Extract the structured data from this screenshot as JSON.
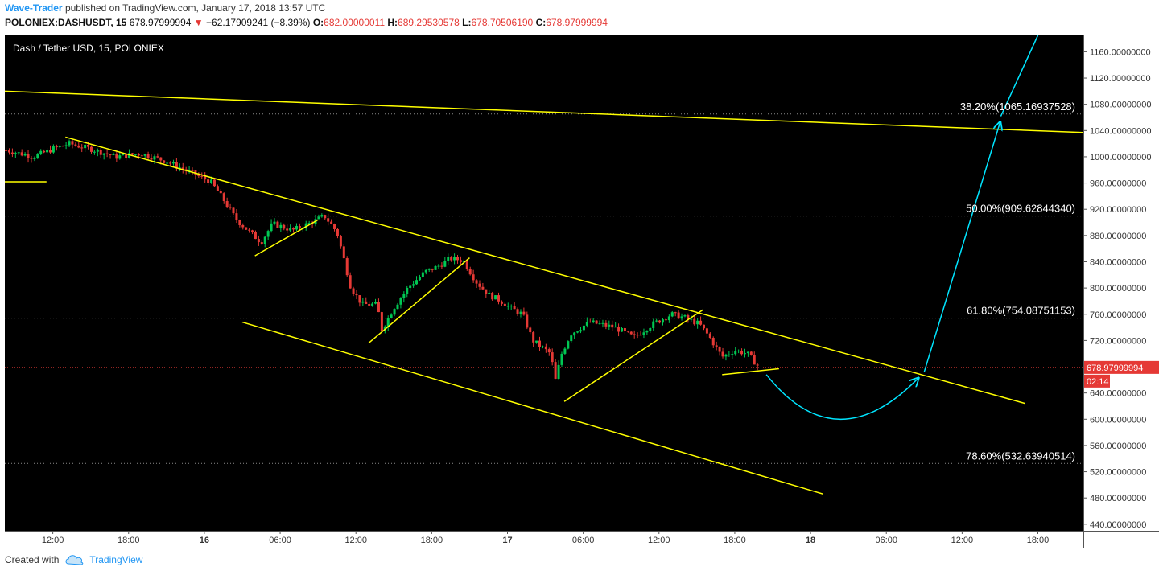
{
  "header": {
    "author": "Wave-Trader",
    "published_text": "published on TradingView.com, January 17, 2018 13:57 UTC",
    "symbol": "POLONIEX:DASHUSDT, 15",
    "last": "678.97999994",
    "change": "−62.17909241 (−8.39%)",
    "o_label": "O:",
    "o_value": "682.00000011",
    "h_label": "H:",
    "h_value": "689.29530578",
    "l_label": "L:",
    "l_value": "678.70506190",
    "c_label": "C:",
    "c_value": "678.97999994"
  },
  "chart_title": "Dash / Tether USD, 15, POLONIEX",
  "footer": {
    "created_with": "Created with",
    "brand": "TradingView",
    "brand_icon": "tradingview-cloud-icon"
  },
  "colors": {
    "background": "#000000",
    "trendline": "#ffff00",
    "projection": "#00e5ff",
    "up_candle": "#00c853",
    "down_candle": "#e53935",
    "price_tag": "#e53935"
  },
  "chart_data": {
    "type": "candlestick",
    "title": "Dash / Tether USD, 15, POLONIEX",
    "x_ticks": [
      "12:00",
      "18:00",
      "16",
      "06:00",
      "12:00",
      "18:00",
      "17",
      "06:00",
      "12:00",
      "18:00",
      "18",
      "06:00",
      "12:00",
      "18:00"
    ],
    "x_tick_times": [
      -42,
      -36,
      -30,
      -24,
      -18,
      -12,
      -6,
      0,
      6,
      12,
      18,
      24,
      30,
      36
    ],
    "y_ticks": [
      "440.00000000",
      "480.00000000",
      "520.00000000",
      "560.00000000",
      "600.00000000",
      "640.00000000",
      "680.00000000",
      "720.00000000",
      "760.00000000",
      "800.00000000",
      "840.00000000",
      "880.00000000",
      "920.00000000",
      "960.00000000",
      "1000.00000000",
      "1040.00000000",
      "1080.00000000",
      "1120.00000000",
      "1160.00000000"
    ],
    "y_tick_values": [
      440,
      480,
      520,
      560,
      600,
      640,
      680,
      720,
      760,
      800,
      840,
      880,
      920,
      960,
      1000,
      1040,
      1080,
      1120,
      1160
    ],
    "ylim": [
      430,
      1185
    ],
    "xlim": [
      -45.8,
      39.6
    ],
    "time_axis_note": "hours relative to 2018-01-17 00:00",
    "price_path": [
      [
        -45.7,
        1010
      ],
      [
        -43.5,
        1000
      ],
      [
        -42.0,
        1012
      ],
      [
        -40.7,
        1020
      ],
      [
        -39.0,
        1012
      ],
      [
        -37.0,
        1000
      ],
      [
        -35.0,
        1005
      ],
      [
        -33.0,
        993
      ],
      [
        -31.0,
        975
      ],
      [
        -29.5,
        962
      ],
      [
        -28.5,
        935
      ],
      [
        -27.5,
        905
      ],
      [
        -26.3,
        883
      ],
      [
        -25.5,
        870
      ],
      [
        -24.6,
        898
      ],
      [
        -23.0,
        888
      ],
      [
        -21.5,
        900
      ],
      [
        -20.5,
        910
      ],
      [
        -19.5,
        885
      ],
      [
        -19.0,
        848
      ],
      [
        -18.4,
        800
      ],
      [
        -17.5,
        775
      ],
      [
        -16.3,
        775
      ],
      [
        -16.0,
        735
      ],
      [
        -15.0,
        770
      ],
      [
        -13.9,
        800
      ],
      [
        -12.5,
        825
      ],
      [
        -11.6,
        832
      ],
      [
        -10.5,
        845
      ],
      [
        -9.5,
        842
      ],
      [
        -8.5,
        810
      ],
      [
        -7.5,
        790
      ],
      [
        -6.5,
        780
      ],
      [
        -5.8,
        770
      ],
      [
        -4.8,
        760
      ],
      [
        -4.0,
        720
      ],
      [
        -2.6,
        700
      ],
      [
        -2.2,
        660
      ],
      [
        -1.7,
        700
      ],
      [
        -1.0,
        730
      ],
      [
        0.5,
        748
      ],
      [
        2.5,
        740
      ],
      [
        4.0,
        725
      ],
      [
        5.5,
        745
      ],
      [
        7.0,
        760
      ],
      [
        8.0,
        755
      ],
      [
        9.2,
        745
      ],
      [
        10.0,
        725
      ],
      [
        11.0,
        695
      ],
      [
        12.0,
        705
      ],
      [
        13.0,
        700
      ],
      [
        13.8,
        682
      ]
    ],
    "current_price": "678.97999994",
    "countdown": "02:14",
    "fibonacci_levels": [
      {
        "label": "38.20%(1065.16937528)",
        "value": 1065.16937528
      },
      {
        "label": "50.00%(909.62844340)",
        "value": 909.6284434
      },
      {
        "label": "61.80%(754.08751153)",
        "value": 754.08751153
      },
      {
        "label": "78.60%(532.63940514)",
        "value": 532.63940514
      }
    ],
    "trendlines": [
      {
        "role": "long-term resistance",
        "points": [
          [
            -45.8,
            1100
          ],
          [
            39.6,
            1037
          ]
        ]
      },
      {
        "role": "short horizontal",
        "points": [
          [
            -45.8,
            962
          ],
          [
            -42.5,
            962
          ]
        ]
      },
      {
        "role": "channel upper",
        "points": [
          [
            -41.0,
            1030
          ],
          [
            35.0,
            624
          ]
        ]
      },
      {
        "role": "channel lower",
        "points": [
          [
            -27.0,
            748
          ],
          [
            19.0,
            486
          ]
        ]
      },
      {
        "role": "rising wedge 1",
        "points": [
          [
            -26.0,
            849
          ],
          [
            -21.0,
            904
          ]
        ]
      },
      {
        "role": "rising wedge 2",
        "points": [
          [
            -17.0,
            716
          ],
          [
            -9.0,
            846
          ]
        ]
      },
      {
        "role": "rising wedge 3",
        "points": [
          [
            -1.5,
            627
          ],
          [
            9.5,
            767
          ]
        ]
      },
      {
        "role": "rising wedge 4",
        "points": [
          [
            11.0,
            668
          ],
          [
            15.5,
            677
          ]
        ]
      }
    ],
    "projection": {
      "curve": [
        [
          14.5,
          668
        ],
        [
          20.0,
          535
        ],
        [
          26.5,
          662
        ]
      ],
      "impulse": [
        [
          27.0,
          672
        ],
        [
          33.0,
          1052
        ],
        [
          36.0,
          1185
        ]
      ]
    }
  }
}
